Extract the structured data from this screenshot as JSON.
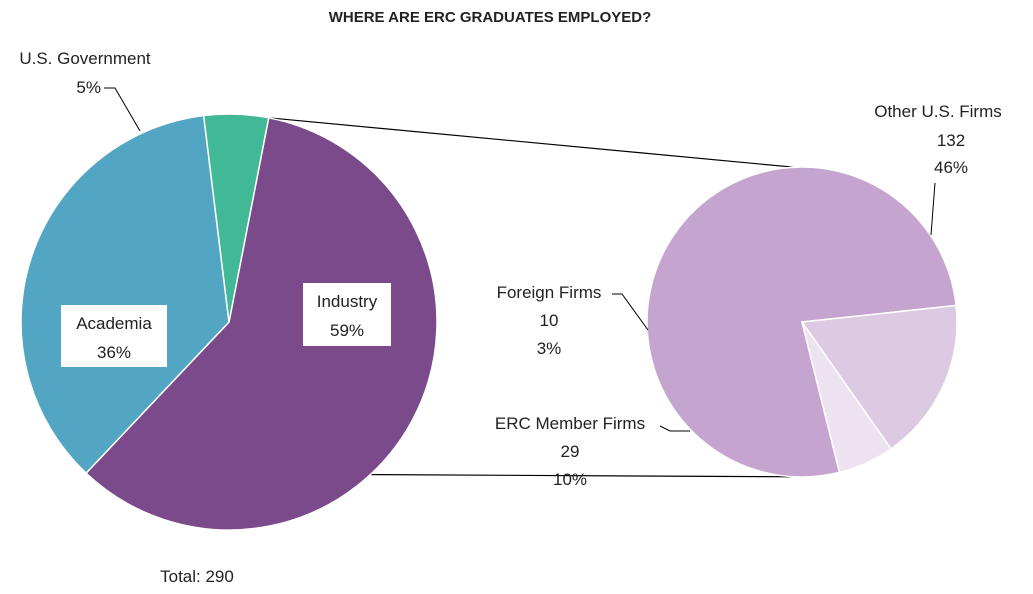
{
  "chart_data": {
    "type": "pie",
    "title": "WHERE ARE ERC GRADUATES EMPLOYED?",
    "total_label": "Total: 290",
    "main_pie": {
      "slices": [
        {
          "name": "Industry",
          "percent": 59,
          "percent_label": "59%",
          "color": "#7B4A8A"
        },
        {
          "name": "Academia",
          "percent": 36,
          "percent_label": "36%",
          "color": "#52A6C3"
        },
        {
          "name": "U.S. Government",
          "percent": 5,
          "percent_label": "5%",
          "color": "#42B996"
        }
      ]
    },
    "breakdown_pie": {
      "of": "Industry",
      "slices": [
        {
          "name": "Other U.S. Firms",
          "count": 132,
          "count_label": "132",
          "percent": 46,
          "percent_label": "46%",
          "color": "#C5A5D0"
        },
        {
          "name": "ERC Member Firms",
          "count": 29,
          "count_label": "29",
          "percent": 10,
          "percent_label": "10%",
          "color": "#DCC9E2"
        },
        {
          "name": "Foreign Firms",
          "count": 10,
          "count_label": "10",
          "percent": 3,
          "percent_label": "3%",
          "color": "#ECE2F0"
        }
      ]
    }
  }
}
